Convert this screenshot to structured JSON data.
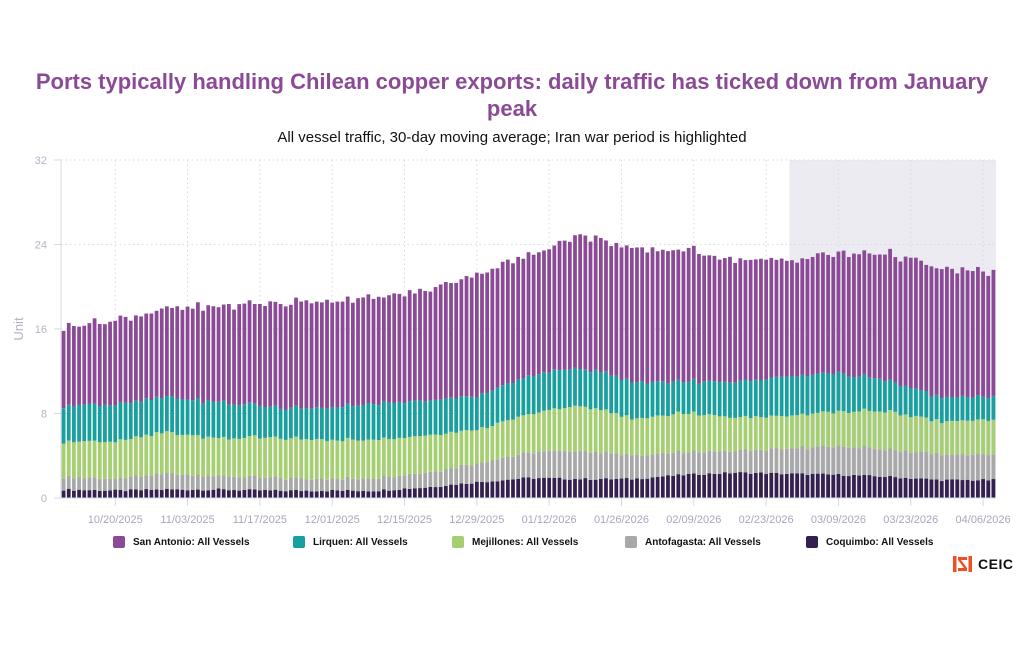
{
  "title_lines": [
    "Ports typically handling Chilean copper exports: daily traffic has ticked down from January",
    "peak"
  ],
  "subtitle": "All vessel traffic, 30-day moving average; Iran war period is highlighted",
  "brand": {
    "name": "CEIC",
    "color": "#f04e23"
  },
  "chart_data": {
    "type": "bar",
    "stacked": true,
    "title": "Ports typically handling Chilean copper exports: daily traffic has ticked down from January peak",
    "subtitle": "All vessel traffic, 30-day moving average; Iran war period is highlighted",
    "xlabel": "",
    "ylabel": "Unit",
    "ylim": [
      0,
      32
    ],
    "yticks": [
      0,
      8,
      16,
      24,
      32
    ],
    "grid": true,
    "legend_position": "bottom",
    "x_start": "10/10/2025",
    "x_end": "04/08/2026",
    "xtick_labels": [
      "10/20/2025",
      "11/03/2025",
      "11/17/2025",
      "12/01/2025",
      "12/15/2025",
      "12/29/2025",
      "01/12/2026",
      "01/26/2026",
      "02/09/2026",
      "02/23/2026",
      "03/09/2026",
      "03/23/2026",
      "04/06/2026"
    ],
    "highlight": {
      "label": "Iran war period",
      "start": "02/28/2026",
      "end": "04/08/2026",
      "color": "#ecebf2"
    },
    "anchors_day_index": [
      0,
      10,
      20,
      30,
      40,
      50,
      60,
      70,
      80,
      90,
      100,
      110,
      120,
      130,
      140,
      150,
      160,
      170,
      179
    ],
    "series": [
      {
        "name": "Coquimbo: All Vessels",
        "color": "#33204f",
        "values": [
          0.8,
          0.7,
          0.8,
          0.8,
          0.7,
          0.7,
          0.7,
          1.0,
          1.5,
          1.9,
          1.8,
          1.8,
          2.2,
          2.4,
          2.3,
          2.2,
          2.0,
          1.7,
          1.7
        ]
      },
      {
        "name": "Antofagasta: All Vessels",
        "color": "#a8a8a8",
        "values": [
          1.2,
          1.1,
          1.5,
          1.3,
          1.2,
          1.1,
          1.2,
          1.4,
          1.8,
          2.4,
          2.7,
          2.2,
          2.1,
          2.1,
          2.4,
          2.7,
          2.6,
          2.4,
          2.4
        ]
      },
      {
        "name": "Mejillones: All Vessels",
        "color": "#a5cf72",
        "values": [
          3.4,
          3.5,
          3.9,
          3.6,
          3.8,
          3.7,
          3.6,
          3.5,
          3.2,
          3.6,
          4.3,
          3.5,
          3.7,
          3.2,
          3.1,
          3.3,
          3.6,
          3.1,
          3.3
        ]
      },
      {
        "name": "Lirquen: All Vessels",
        "color": "#17a09e",
        "values": [
          3.4,
          3.5,
          3.4,
          3.4,
          2.9,
          3.0,
          3.4,
          3.3,
          3.2,
          3.6,
          3.6,
          3.5,
          3.0,
          3.3,
          3.7,
          3.6,
          2.9,
          2.3,
          2.2
        ]
      },
      {
        "name": "San Antonio: All Vessels",
        "color": "#8b4a96",
        "values": [
          7.5,
          8.0,
          8.3,
          9.1,
          9.8,
          10.2,
          10.0,
          10.4,
          11.6,
          11.4,
          12.6,
          12.5,
          12.5,
          11.6,
          11.0,
          11.3,
          12.1,
          12.1,
          11.8
        ]
      }
    ],
    "totals_sample": [
      16.3,
      16.8,
      17.9,
      18.2,
      18.4,
      18.7,
      18.9,
      19.6,
      21.3,
      22.9,
      25.0,
      23.5,
      23.5,
      22.6,
      22.5,
      23.1,
      23.2,
      21.6,
      21.4
    ]
  },
  "legend": [
    {
      "label": "San Antonio: All Vessels",
      "color": "#8b4a96"
    },
    {
      "label": "Lirquen: All Vessels",
      "color": "#17a09e"
    },
    {
      "label": "Mejillones: All Vessels",
      "color": "#a5cf72"
    },
    {
      "label": "Antofagasta: All Vessels",
      "color": "#a8a8a8"
    },
    {
      "label": "Coquimbo: All Vessels",
      "color": "#33204f"
    }
  ]
}
